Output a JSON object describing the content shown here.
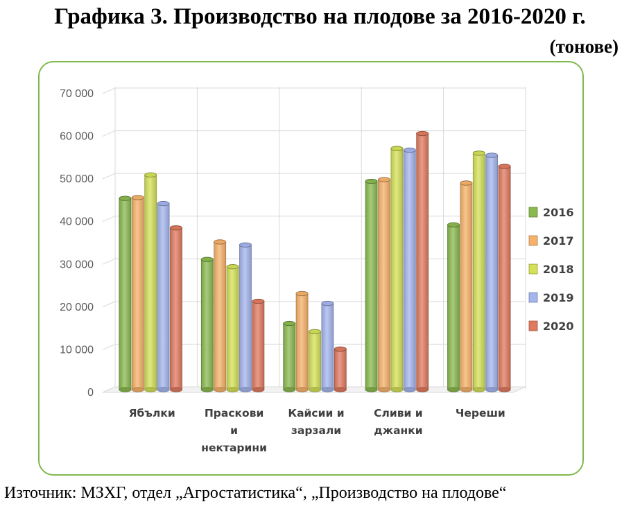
{
  "title": "Графика 3. Производство на плодове за 2016-2020 г.",
  "subtitle": "(тонове)",
  "source": "Източник: МЗХГ, отдел „Агростатистика“, „Производство на плодове“",
  "chart_data": {
    "type": "bar",
    "categories": [
      [
        "Ябълки"
      ],
      [
        "Праскови",
        "и",
        "нектарини"
      ],
      [
        "Кайсии и",
        "зарзали"
      ],
      [
        "Сливи и",
        "джанки"
      ],
      [
        "Череши"
      ]
    ],
    "series": [
      {
        "name": "2016",
        "color": "#8ab94f",
        "values": [
          44800,
          30500,
          15500,
          48800,
          38600
        ]
      },
      {
        "name": "2017",
        "color": "#f6b26b",
        "values": [
          45000,
          34600,
          22500,
          49200,
          48400
        ]
      },
      {
        "name": "2018",
        "color": "#d4e157",
        "values": [
          50300,
          28800,
          13600,
          56500,
          55400
        ]
      },
      {
        "name": "2019",
        "color": "#a4b5ee",
        "values": [
          43600,
          33900,
          20200,
          56100,
          54900
        ]
      },
      {
        "name": "2020",
        "color": "#e07a5f",
        "values": [
          37900,
          20700,
          9500,
          60000,
          52300
        ]
      }
    ],
    "ylim": [
      0,
      70000
    ],
    "yticks": [
      "0",
      "10 000",
      "20 000",
      "30 000",
      "40 000",
      "50 000",
      "60 000",
      "70 000"
    ],
    "grid": true,
    "legend": "right"
  }
}
